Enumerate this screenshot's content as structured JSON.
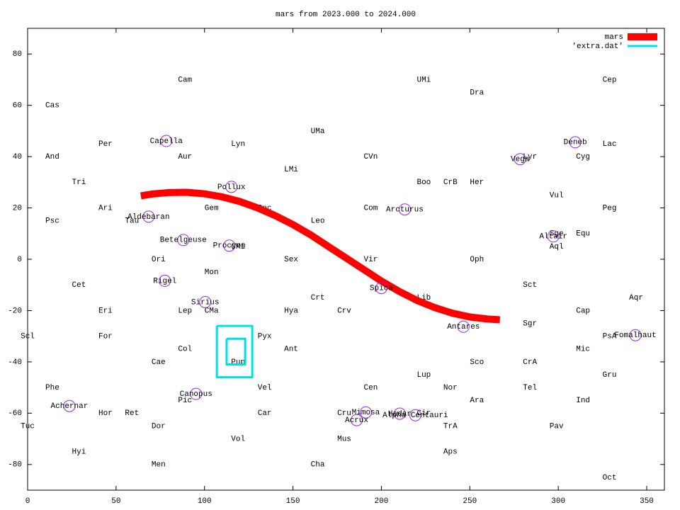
{
  "chart_data": {
    "type": "line",
    "title": "mars from 2023.000 to 2024.000",
    "xlim": [
      0,
      360
    ],
    "ylim": [
      -90,
      90
    ],
    "xticks": [
      0,
      50,
      100,
      150,
      200,
      250,
      300,
      350
    ],
    "yticks": [
      -80,
      -60,
      -40,
      -20,
      0,
      20,
      40,
      60,
      80
    ],
    "legend": "top right",
    "series": [
      {
        "name": "mars",
        "color": "#ff0000",
        "x": [
          64,
          70,
          80,
          90,
          100,
          110,
          120,
          130,
          140,
          150,
          160,
          170,
          180,
          190,
          200,
          210,
          220,
          230,
          240,
          250,
          260,
          267
        ],
        "values": [
          24.7,
          25.4,
          26,
          26.1,
          25.5,
          24.3,
          22.5,
          20,
          17,
          13.5,
          9.5,
          5,
          0.5,
          -4,
          -8.5,
          -12.5,
          -16,
          -18.8,
          -21,
          -22.5,
          -23.3,
          -23.6
        ]
      },
      {
        "name": "'extra.dat'",
        "color": "#00e0e0",
        "x": [
          107,
          127,
          127,
          107,
          107,
          null,
          112.5,
          123,
          123,
          112.5,
          112.5
        ],
        "values": [
          -26,
          -26,
          -46,
          -46,
          -26,
          null,
          -31,
          -31,
          -41,
          -41,
          -31
        ]
      }
    ],
    "star_color": "#a020f0",
    "stars": [
      {
        "label": "Capella",
        "x": 78.4,
        "y": 46.1
      },
      {
        "label": "Pollux",
        "x": 115.2,
        "y": 28.2
      },
      {
        "label": "Aldebaran",
        "x": 68.4,
        "y": 16.6
      },
      {
        "label": "Betelgeuse",
        "x": 88,
        "y": 7.5
      },
      {
        "label": "Procyon",
        "x": 114,
        "y": 5.3
      },
      {
        "label": "Rigel",
        "x": 77.6,
        "y": -8.4
      },
      {
        "label": "Sirius",
        "x": 100.4,
        "y": -16.7
      },
      {
        "label": "Canopus",
        "x": 95.2,
        "y": -52.5
      },
      {
        "label": "Achernar",
        "x": 23.6,
        "y": -57.2
      },
      {
        "label": "Vega",
        "x": 278.4,
        "y": 39
      },
      {
        "label": "Deneb",
        "x": 309.6,
        "y": 45.6
      },
      {
        "label": "Altair",
        "x": 297.2,
        "y": 8.9
      },
      {
        "label": "Arcturus",
        "x": 213.2,
        "y": 19.4
      },
      {
        "label": "Spica",
        "x": 200,
        "y": -11.2
      },
      {
        "label": "Antares",
        "x": 246.4,
        "y": -26.3
      },
      {
        "label": "Fomalhaut",
        "x": 343.6,
        "y": -29.6
      },
      {
        "label": "Mimosa",
        "x": 191.2,
        "y": -59.7
      },
      {
        "label": "Acrux",
        "x": 186,
        "y": -62.7
      },
      {
        "label": "Hadar",
        "x": 210.4,
        "y": -60.2
      },
      {
        "label": "Alpha Centauri",
        "x": 219.2,
        "y": -60.8
      }
    ],
    "constellations": [
      {
        "label": "Cam",
        "x": 89,
        "y": 70
      },
      {
        "label": "UMi",
        "x": 224,
        "y": 70
      },
      {
        "label": "Dra",
        "x": 254,
        "y": 65
      },
      {
        "label": "Cep",
        "x": 329,
        "y": 70
      },
      {
        "label": "Cas",
        "x": 14,
        "y": 60
      },
      {
        "label": "UMa",
        "x": 164,
        "y": 50
      },
      {
        "label": "Per",
        "x": 44,
        "y": 45
      },
      {
        "label": "Lyn",
        "x": 119,
        "y": 45
      },
      {
        "label": "Lac",
        "x": 329,
        "y": 45
      },
      {
        "label": "And",
        "x": 14,
        "y": 40
      },
      {
        "label": "Aur",
        "x": 89,
        "y": 40
      },
      {
        "label": "CVn",
        "x": 194,
        "y": 40
      },
      {
        "label": "Lyr",
        "x": 284,
        "y": 40
      },
      {
        "label": "Cyg",
        "x": 314,
        "y": 40
      },
      {
        "label": "LMi",
        "x": 149,
        "y": 35
      },
      {
        "label": "Tri",
        "x": 29,
        "y": 30
      },
      {
        "label": "Boo",
        "x": 224,
        "y": 30
      },
      {
        "label": "CrB",
        "x": 239,
        "y": 30
      },
      {
        "label": "Her",
        "x": 254,
        "y": 30
      },
      {
        "label": "Vul",
        "x": 299,
        "y": 25
      },
      {
        "label": "Ari",
        "x": 44,
        "y": 20
      },
      {
        "label": "Gem",
        "x": 104,
        "y": 20
      },
      {
        "label": "Cnc",
        "x": 134,
        "y": 20
      },
      {
        "label": "Com",
        "x": 194,
        "y": 20
      },
      {
        "label": "Peg",
        "x": 329,
        "y": 20
      },
      {
        "label": "Psc",
        "x": 14,
        "y": 15
      },
      {
        "label": "Tau",
        "x": 59,
        "y": 15
      },
      {
        "label": "Leo",
        "x": 164,
        "y": 15
      },
      {
        "label": "Sge",
        "x": 299,
        "y": 10
      },
      {
        "label": "Equ",
        "x": 314,
        "y": 10
      },
      {
        "label": "CMi",
        "x": 119,
        "y": 5
      },
      {
        "label": "Aql",
        "x": 299,
        "y": 5
      },
      {
        "label": "Ori",
        "x": 74,
        "y": 0
      },
      {
        "label": "Sex",
        "x": 149,
        "y": 0
      },
      {
        "label": "Vir",
        "x": 194,
        "y": 0
      },
      {
        "label": "Oph",
        "x": 254,
        "y": 0
      },
      {
        "label": "Mon",
        "x": 104,
        "y": -5
      },
      {
        "label": "Cet",
        "x": 29,
        "y": -10
      },
      {
        "label": "Sct",
        "x": 284,
        "y": -10
      },
      {
        "label": "Crt",
        "x": 164,
        "y": -15
      },
      {
        "label": "Lib",
        "x": 224,
        "y": -15
      },
      {
        "label": "Aqr",
        "x": 344,
        "y": -15
      },
      {
        "label": "Eri",
        "x": 44,
        "y": -20
      },
      {
        "label": "Lep",
        "x": 89,
        "y": -20
      },
      {
        "label": "CMa",
        "x": 104,
        "y": -20
      },
      {
        "label": "Hya",
        "x": 149,
        "y": -20
      },
      {
        "label": "Crv",
        "x": 179,
        "y": -20
      },
      {
        "label": "Cap",
        "x": 314,
        "y": -20
      },
      {
        "label": "Sgr",
        "x": 284,
        "y": -25
      },
      {
        "label": "Scl",
        "x": 0,
        "y": -30
      },
      {
        "label": "For",
        "x": 44,
        "y": -30
      },
      {
        "label": "Pyx",
        "x": 134,
        "y": -30
      },
      {
        "label": "PsA",
        "x": 329,
        "y": -30
      },
      {
        "label": "Col",
        "x": 89,
        "y": -35
      },
      {
        "label": "Ant",
        "x": 149,
        "y": -35
      },
      {
        "label": "Mic",
        "x": 314,
        "y": -35
      },
      {
        "label": "Cae",
        "x": 74,
        "y": -40
      },
      {
        "label": "Pup",
        "x": 119,
        "y": -40
      },
      {
        "label": "Sco",
        "x": 254,
        "y": -40
      },
      {
        "label": "CrA",
        "x": 284,
        "y": -40
      },
      {
        "label": "Lup",
        "x": 224,
        "y": -45
      },
      {
        "label": "Gru",
        "x": 329,
        "y": -45
      },
      {
        "label": "Phe",
        "x": 14,
        "y": -50
      },
      {
        "label": "Vel",
        "x": 134,
        "y": -50
      },
      {
        "label": "Cen",
        "x": 194,
        "y": -50
      },
      {
        "label": "Nor",
        "x": 239,
        "y": -50
      },
      {
        "label": "Tel",
        "x": 284,
        "y": -50
      },
      {
        "label": "Pic",
        "x": 89,
        "y": -55
      },
      {
        "label": "Ara",
        "x": 254,
        "y": -55
      },
      {
        "label": "Ind",
        "x": 314,
        "y": -55
      },
      {
        "label": "Hor",
        "x": 44,
        "y": -60
      },
      {
        "label": "Ret",
        "x": 59,
        "y": -60
      },
      {
        "label": "Car",
        "x": 134,
        "y": -60
      },
      {
        "label": "Cru",
        "x": 179,
        "y": -60
      },
      {
        "label": "Cir",
        "x": 224,
        "y": -60
      },
      {
        "label": "Tuc",
        "x": 0,
        "y": -65
      },
      {
        "label": "Dor",
        "x": 74,
        "y": -65
      },
      {
        "label": "TrA",
        "x": 239,
        "y": -65
      },
      {
        "label": "Pav",
        "x": 299,
        "y": -65
      },
      {
        "label": "Vol",
        "x": 119,
        "y": -70
      },
      {
        "label": "Mus",
        "x": 179,
        "y": -70
      },
      {
        "label": "Hyi",
        "x": 29,
        "y": -75
      },
      {
        "label": "Aps",
        "x": 239,
        "y": -75
      },
      {
        "label": "Men",
        "x": 74,
        "y": -80
      },
      {
        "label": "Cha",
        "x": 164,
        "y": -80
      },
      {
        "label": "Oct",
        "x": 329,
        "y": -85
      }
    ]
  }
}
